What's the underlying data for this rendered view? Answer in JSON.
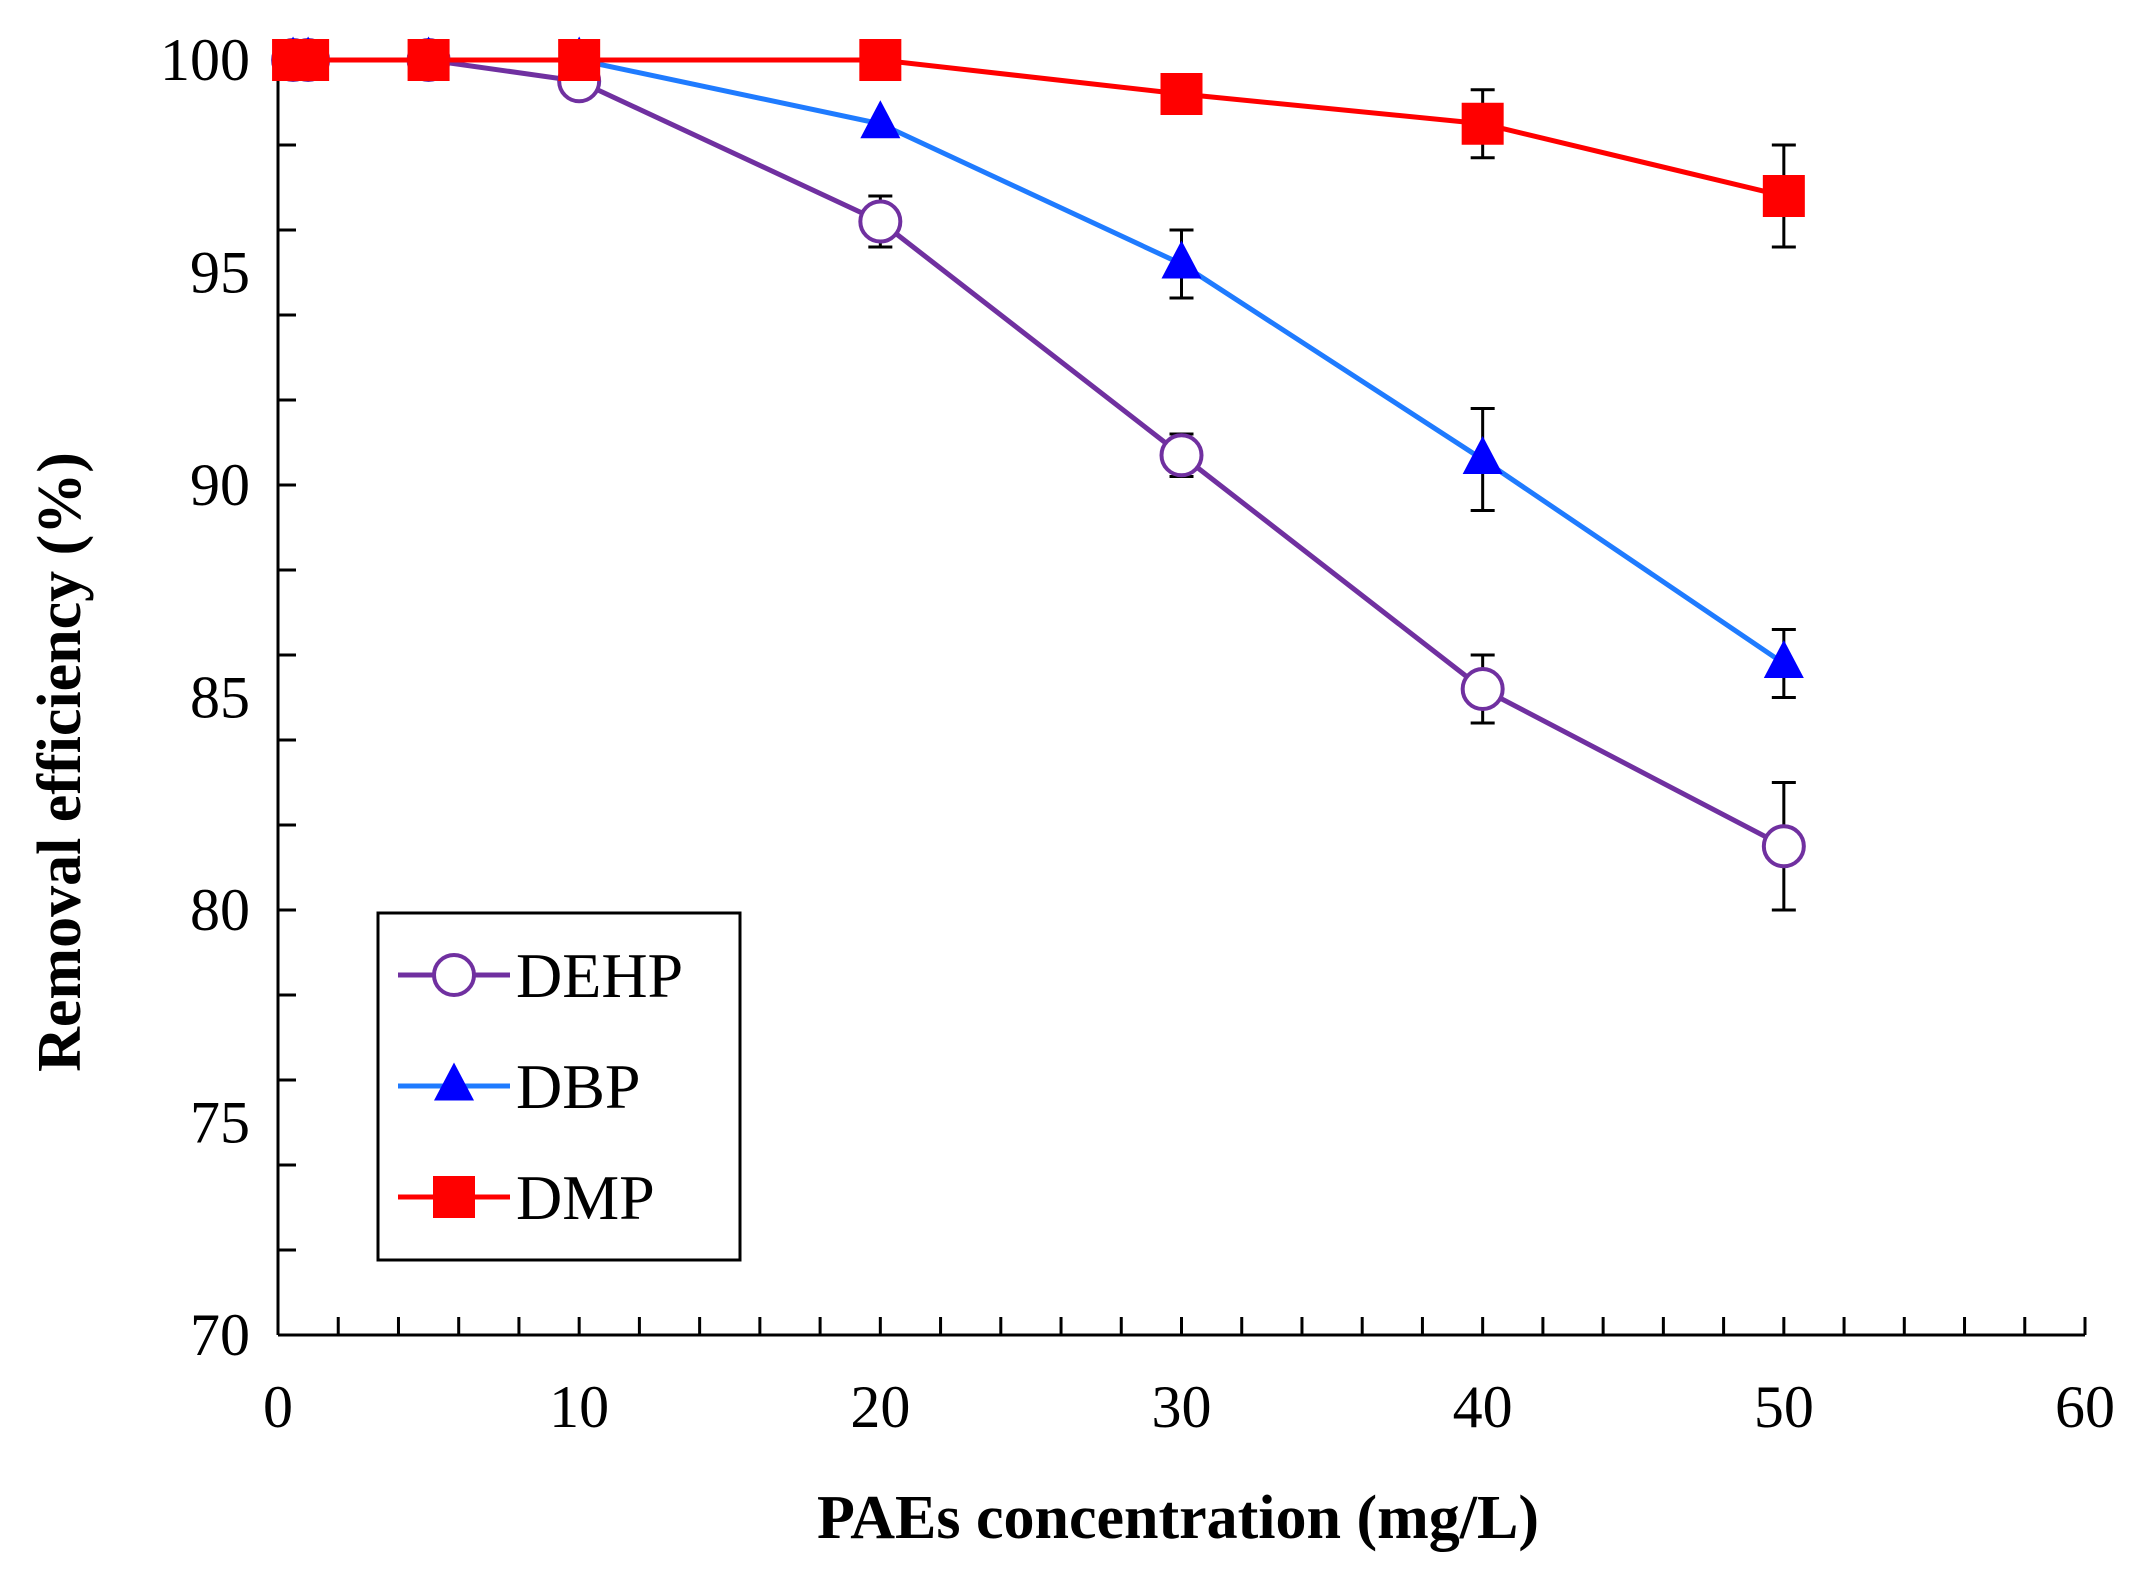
{
  "chart_data": {
    "type": "line",
    "xlabel": "PAEs concentration (mg/L)",
    "ylabel": "Removal efficiency (%)",
    "xlim": [
      0,
      60
    ],
    "ylim": [
      70,
      100
    ],
    "xticks": [
      0,
      10,
      20,
      30,
      40,
      50,
      60
    ],
    "yticks": [
      70,
      75,
      80,
      85,
      90,
      95,
      100
    ],
    "x_minor_step": 2,
    "y_minor_step": 2,
    "grid": false,
    "legend_position": "bottom-left",
    "series": [
      {
        "name": "DEHP",
        "color": "#7030A0",
        "marker": "open-circle",
        "x": [
          0.5,
          1,
          5,
          10,
          20,
          30,
          40,
          50
        ],
        "y": [
          100,
          100,
          100,
          99.5,
          96.2,
          90.7,
          85.2,
          81.5
        ],
        "err": [
          0,
          0,
          0,
          0,
          0.6,
          0.5,
          0.8,
          1.5
        ]
      },
      {
        "name": "DBP",
        "color": "#1F7BFF",
        "marker_color": "#0000FF",
        "marker": "filled-triangle",
        "x": [
          0.5,
          1,
          5,
          10,
          20,
          30,
          40,
          50
        ],
        "y": [
          100,
          100,
          100,
          100,
          98.5,
          95.2,
          90.6,
          85.8
        ],
        "err": [
          0,
          0,
          0,
          0,
          0,
          0.8,
          1.2,
          0.8
        ]
      },
      {
        "name": "DMP",
        "color": "#FF0000",
        "marker": "filled-square",
        "x": [
          0.5,
          1,
          5,
          10,
          20,
          30,
          40,
          50
        ],
        "y": [
          100,
          100,
          100,
          100,
          100,
          99.2,
          98.5,
          96.8
        ],
        "err": [
          0,
          0,
          0,
          0,
          0,
          0,
          0.8,
          1.2
        ]
      }
    ]
  }
}
